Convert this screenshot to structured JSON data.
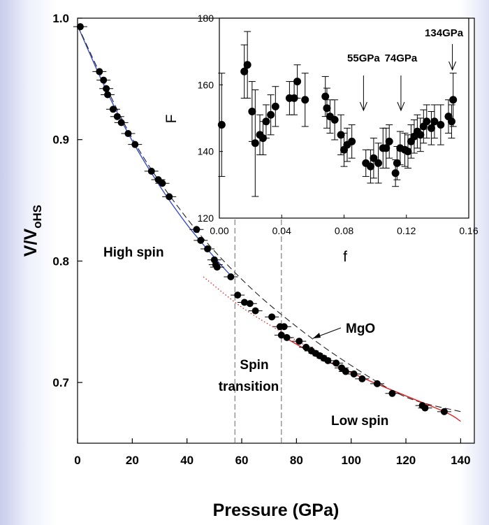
{
  "chart_data": [
    {
      "id": "main",
      "type": "scatter",
      "xlabel": "Pressure (GPa)",
      "ylabel_main": "V/V",
      "ylabel_sub": "oHS",
      "xlim": [
        0,
        145
      ],
      "ylim": [
        0.65,
        1.0
      ],
      "xticks": [
        0,
        20,
        40,
        60,
        80,
        100,
        120,
        140
      ],
      "yticks": [
        0.7,
        0.8,
        0.9,
        1.0
      ],
      "ytick_labels": [
        "0.7",
        "0.8",
        "0.9",
        "1.0"
      ],
      "grid": false,
      "points": [
        {
          "x": 1,
          "y": 0.993
        },
        {
          "x": 8,
          "y": 0.956
        },
        {
          "x": 9.5,
          "y": 0.949
        },
        {
          "x": 10.5,
          "y": 0.942
        },
        {
          "x": 11,
          "y": 0.937
        },
        {
          "x": 13,
          "y": 0.925
        },
        {
          "x": 14.5,
          "y": 0.919
        },
        {
          "x": 16,
          "y": 0.914
        },
        {
          "x": 18.5,
          "y": 0.905
        },
        {
          "x": 21,
          "y": 0.896
        },
        {
          "x": 27,
          "y": 0.874
        },
        {
          "x": 29.5,
          "y": 0.867
        },
        {
          "x": 31,
          "y": 0.864
        },
        {
          "x": 33.5,
          "y": 0.853
        },
        {
          "x": 43.5,
          "y": 0.826
        },
        {
          "x": 45,
          "y": 0.817
        },
        {
          "x": 47.5,
          "y": 0.81
        },
        {
          "x": 50,
          "y": 0.801
        },
        {
          "x": 50.5,
          "y": 0.797
        },
        {
          "x": 51,
          "y": 0.795
        },
        {
          "x": 56,
          "y": 0.787
        },
        {
          "x": 58.5,
          "y": 0.772
        },
        {
          "x": 61,
          "y": 0.766
        },
        {
          "x": 63,
          "y": 0.765
        },
        {
          "x": 65,
          "y": 0.759
        },
        {
          "x": 71,
          "y": 0.754
        },
        {
          "x": 74,
          "y": 0.746
        },
        {
          "x": 75.5,
          "y": 0.746
        },
        {
          "x": 74.5,
          "y": 0.739
        },
        {
          "x": 76.5,
          "y": 0.737
        },
        {
          "x": 81,
          "y": 0.734
        },
        {
          "x": 83.5,
          "y": 0.729
        },
        {
          "x": 85.5,
          "y": 0.726
        },
        {
          "x": 87,
          "y": 0.724
        },
        {
          "x": 88.5,
          "y": 0.722
        },
        {
          "x": 90,
          "y": 0.72
        },
        {
          "x": 91.5,
          "y": 0.718
        },
        {
          "x": 94.5,
          "y": 0.716
        },
        {
          "x": 96.5,
          "y": 0.712
        },
        {
          "x": 98,
          "y": 0.709
        },
        {
          "x": 101,
          "y": 0.707
        },
        {
          "x": 104,
          "y": 0.703
        },
        {
          "x": 109.5,
          "y": 0.699
        },
        {
          "x": 115,
          "y": 0.691
        },
        {
          "x": 126,
          "y": 0.681
        },
        {
          "x": 127,
          "y": 0.679
        },
        {
          "x": 134,
          "y": 0.676
        }
      ],
      "curves": [
        {
          "style": "blue-solid",
          "x": [
            0,
            10,
            20,
            30,
            40,
            50,
            56
          ],
          "y": [
            0.994,
            0.943,
            0.899,
            0.862,
            0.83,
            0.803,
            0.788
          ]
        },
        {
          "style": "black-dash",
          "x": [
            0,
            20,
            40,
            60,
            80,
            100,
            120,
            140
          ],
          "y": [
            0.994,
            0.901,
            0.835,
            0.785,
            0.746,
            0.714,
            0.688,
            0.676
          ]
        },
        {
          "style": "red-dot",
          "x": [
            46,
            60,
            75,
            90
          ],
          "y": [
            0.787,
            0.762,
            0.741,
            0.722
          ]
        },
        {
          "style": "red-solid",
          "x": [
            75,
            90,
            105,
            120,
            135,
            140
          ],
          "y": [
            0.738,
            0.719,
            0.703,
            0.689,
            0.675,
            0.668
          ]
        }
      ],
      "vlines": [
        57.5,
        74.5
      ],
      "annotations": {
        "high_spin": "High spin",
        "spin_transition_line1": "Spin",
        "spin_transition_line2": "transition",
        "low_spin": "Low spin",
        "mgo": "MgO"
      }
    },
    {
      "id": "inset",
      "type": "scatter",
      "xlabel": "f",
      "ylabel": "F",
      "xlim": [
        0,
        0.16
      ],
      "ylim": [
        120,
        180
      ],
      "xticks": [
        0.0,
        0.04,
        0.08,
        0.12,
        0.16
      ],
      "xtick_labels": [
        "0.00",
        "0.04",
        "0.08",
        "0.12",
        "0.16"
      ],
      "yticks": [
        120,
        140,
        160,
        180
      ],
      "points": [
        {
          "x": 0.0015,
          "y": 148,
          "err": 15.5
        },
        {
          "x": 0.016,
          "y": 164,
          "err": 8
        },
        {
          "x": 0.018,
          "y": 166,
          "err": 10
        },
        {
          "x": 0.021,
          "y": 152,
          "err": 9
        },
        {
          "x": 0.023,
          "y": 142.5,
          "err": 16
        },
        {
          "x": 0.026,
          "y": 145,
          "err": 6
        },
        {
          "x": 0.028,
          "y": 144,
          "err": 5
        },
        {
          "x": 0.03,
          "y": 149,
          "err": 5
        },
        {
          "x": 0.033,
          "y": 151,
          "err": 6
        },
        {
          "x": 0.036,
          "y": 153.5,
          "err": 6
        },
        {
          "x": 0.045,
          "y": 156,
          "err": 5
        },
        {
          "x": 0.048,
          "y": 156,
          "err": 5
        },
        {
          "x": 0.05,
          "y": 161,
          "err": 5
        },
        {
          "x": 0.055,
          "y": 155.5,
          "err": 8
        },
        {
          "x": 0.068,
          "y": 156.5,
          "err": 6
        },
        {
          "x": 0.069,
          "y": 153,
          "err": 6
        },
        {
          "x": 0.071,
          "y": 150.5,
          "err": 5
        },
        {
          "x": 0.074,
          "y": 149.5,
          "err": 6
        },
        {
          "x": 0.078,
          "y": 145,
          "err": 6
        },
        {
          "x": 0.08,
          "y": 140.5,
          "err": 5
        },
        {
          "x": 0.082,
          "y": 142,
          "err": 5
        },
        {
          "x": 0.085,
          "y": 143,
          "err": 5
        },
        {
          "x": 0.094,
          "y": 136.5,
          "err": 4
        },
        {
          "x": 0.097,
          "y": 135.5,
          "err": 5
        },
        {
          "x": 0.099,
          "y": 138,
          "err": 6
        },
        {
          "x": 0.102,
          "y": 136.5,
          "err": 6
        },
        {
          "x": 0.105,
          "y": 141,
          "err": 6
        },
        {
          "x": 0.107,
          "y": 141,
          "err": 6
        },
        {
          "x": 0.109,
          "y": 143,
          "err": 5
        },
        {
          "x": 0.113,
          "y": 133.5,
          "err": 4
        },
        {
          "x": 0.114,
          "y": 136.5,
          "err": 5
        },
        {
          "x": 0.116,
          "y": 141,
          "err": 5
        },
        {
          "x": 0.119,
          "y": 140.5,
          "err": 5
        },
        {
          "x": 0.121,
          "y": 140,
          "err": 5
        },
        {
          "x": 0.123,
          "y": 143,
          "err": 5
        },
        {
          "x": 0.125,
          "y": 144.5,
          "err": 5
        },
        {
          "x": 0.127,
          "y": 146,
          "err": 5
        },
        {
          "x": 0.129,
          "y": 145,
          "err": 5
        },
        {
          "x": 0.131,
          "y": 147.5,
          "err": 5
        },
        {
          "x": 0.133,
          "y": 149,
          "err": 5
        },
        {
          "x": 0.136,
          "y": 147,
          "err": 5
        },
        {
          "x": 0.138,
          "y": 149,
          "err": 5
        },
        {
          "x": 0.142,
          "y": 148,
          "err": 6
        },
        {
          "x": 0.147,
          "y": 150.5,
          "err": 5
        },
        {
          "x": 0.149,
          "y": 149,
          "err": 5
        },
        {
          "x": 0.15,
          "y": 155.5,
          "err": 8
        }
      ],
      "arrows": [
        {
          "label": "55GPa",
          "x": 0.0925
        },
        {
          "label": "74GPa",
          "x": 0.1165
        },
        {
          "label": "134GPa",
          "x": 0.1495
        }
      ]
    }
  ]
}
